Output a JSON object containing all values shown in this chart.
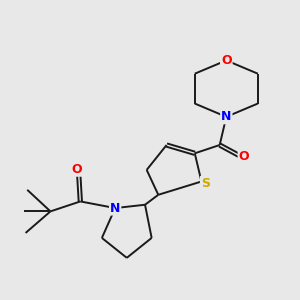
{
  "background_color": "#e8e8e8",
  "bond_color": "#1a1a1a",
  "atom_colors": {
    "O": "#ff0000",
    "N": "#0000ff",
    "S": "#ccaa00"
  },
  "figsize": [
    3.0,
    3.0
  ],
  "dpi": 100
}
